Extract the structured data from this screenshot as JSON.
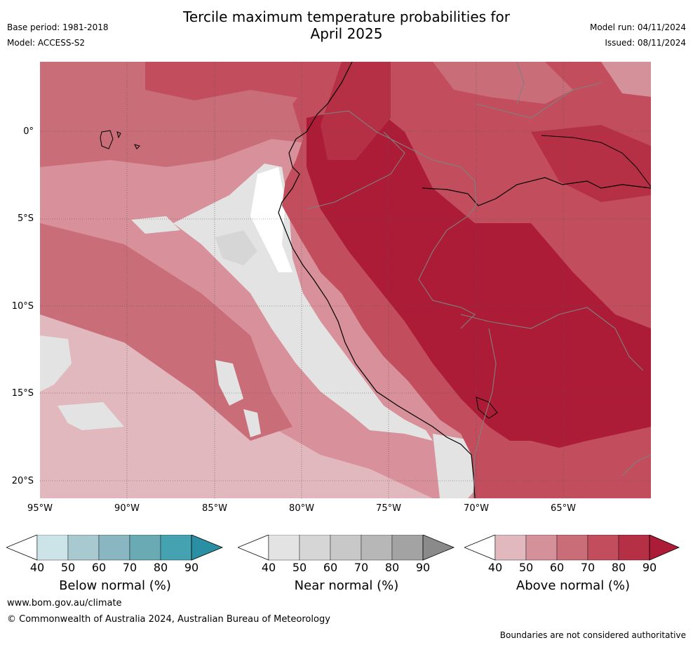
{
  "title_line1": "Tercile maximum temperature probabilities for",
  "title_line2": "April 2025",
  "base_period": "Base period: 1981-2018",
  "model": "Model: ACCESS-S2",
  "model_run": "Model run: 04/11/2024",
  "issued": "Issued: 08/11/2024",
  "map": {
    "lat_labels": [
      "0°",
      "5°S",
      "10°S",
      "15°S",
      "20°S"
    ],
    "lon_labels": [
      "95°W",
      "90°W",
      "85°W",
      "80°W",
      "75°W",
      "70°W",
      "65°W"
    ],
    "colors": {
      "ocean_base": "#d8909a",
      "land_base": "#c24c5e",
      "above_40": "#e0b8be",
      "above_50": "#d4919a",
      "above_60": "#c96d79",
      "above_70": "#c14d5d",
      "above_80": "#b53045",
      "above_90": "#ac1c36",
      "near_40": "#e3e3e3",
      "near_50": "#d6d6d6",
      "white": "#ffffff"
    }
  },
  "legends": [
    {
      "title": "Below normal (%)",
      "ticks": [
        "40",
        "50",
        "60",
        "70",
        "80",
        "90"
      ],
      "colors": [
        "#cce3e8",
        "#a8c9cf",
        "#8ab6c1",
        "#6aaab5",
        "#45a2b1",
        "#2a8fa3"
      ]
    },
    {
      "title": "Near normal (%)",
      "ticks": [
        "40",
        "50",
        "60",
        "70",
        "80",
        "90"
      ],
      "colors": [
        "#e3e3e3",
        "#d6d6d6",
        "#c8c8c8",
        "#b7b7b7",
        "#a3a3a3",
        "#8a8a8a"
      ]
    },
    {
      "title": "Above normal (%)",
      "ticks": [
        "40",
        "50",
        "60",
        "70",
        "80",
        "90"
      ],
      "colors": [
        "#e0b8be",
        "#d4919a",
        "#c96d79",
        "#c14d5d",
        "#b53045",
        "#ac1c36"
      ]
    }
  ],
  "footer_url": "www.bom.gov.au/climate",
  "copyright": "© Commonwealth of Australia 2024, Australian Bureau of Meteorology",
  "disclaimer": "Boundaries are not considered authoritative"
}
